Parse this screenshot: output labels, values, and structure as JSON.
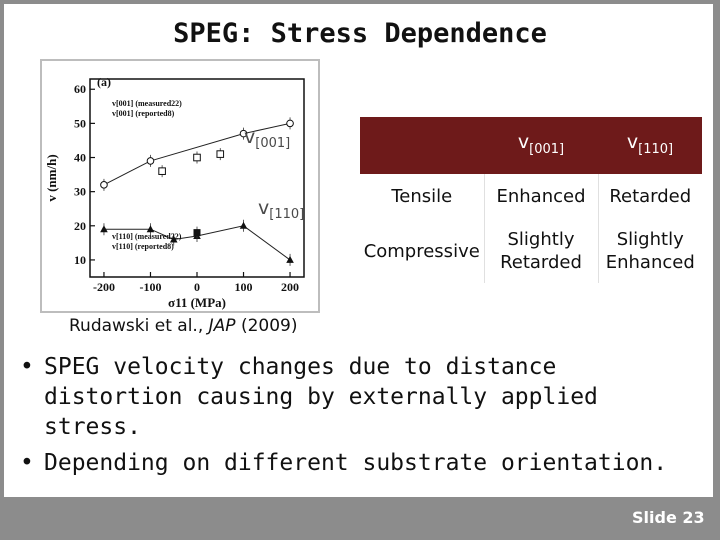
{
  "slide": {
    "title": "SPEG: Stress Dependence",
    "slide_number": "Slide 23",
    "citation": {
      "authors": "Rudawski et al.,",
      "journal": "JAP",
      "year": "(2009)"
    },
    "bullets": [
      "SPEG velocity changes due to distance distortion causing by externally applied stress.",
      "Depending on different substrate orientation."
    ]
  },
  "figure": {
    "panel": "(a)",
    "overlay_labels": [
      {
        "text": "v",
        "sub": "[001]"
      },
      {
        "text": "v",
        "sub": "[110]"
      }
    ],
    "legend_top": [
      "v[001] (measured22)",
      "v[001] (reported8)"
    ],
    "legend_bottom": [
      "v[110] (measured22)",
      "v[110] (reported8)"
    ]
  },
  "table": {
    "headers": [
      {
        "text": "v",
        "sub": "[001]"
      },
      {
        "text": "v",
        "sub": "[110]"
      }
    ],
    "rows": [
      {
        "label": "Tensile",
        "v001": "Enhanced",
        "v110": "Retarded"
      },
      {
        "label": "Compressive",
        "v001_line1": "Slightly",
        "v001_line2": "Retarded",
        "v110_line1": "Slightly",
        "v110_line2": "Enhanced"
      }
    ]
  },
  "chart_data": {
    "type": "line",
    "xlabel": "σ11 (MPa)",
    "ylabel": "v (nm/h)",
    "xlim": [
      -230,
      230
    ],
    "ylim": [
      5,
      63
    ],
    "xticks": [
      -200,
      -100,
      0,
      100,
      200
    ],
    "yticks": [
      10,
      20,
      30,
      40,
      50,
      60
    ],
    "series": [
      {
        "name": "v[001] (measured22)",
        "marker": "open-circle",
        "connected": true,
        "x": [
          -200,
          -100,
          100,
          200
        ],
        "y": [
          32,
          39,
          47,
          50
        ]
      },
      {
        "name": "v[001] (reported8)",
        "marker": "open-square",
        "connected": false,
        "x": [
          -75,
          0,
          50
        ],
        "y": [
          36,
          40,
          41
        ]
      },
      {
        "name": "v[110] (measured22)",
        "marker": "filled-triangle",
        "connected": true,
        "x": [
          -200,
          -100,
          -50,
          0,
          100,
          200
        ],
        "y": [
          19,
          19,
          16,
          17,
          20,
          10
        ]
      },
      {
        "name": "v[110] (reported8)",
        "marker": "filled-square",
        "connected": false,
        "x": [
          0
        ],
        "y": [
          18
        ]
      }
    ]
  }
}
